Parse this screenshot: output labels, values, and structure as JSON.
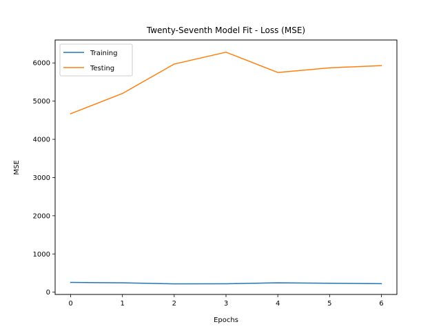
{
  "chart_data": {
    "type": "line",
    "title": "Twenty-Seventh Model Fit - Loss (MSE)",
    "xlabel": "Epochs",
    "ylabel": "MSE",
    "x": [
      0,
      1,
      2,
      3,
      4,
      5,
      6
    ],
    "xlim": [
      -0.3,
      6.3
    ],
    "ylim": [
      -60,
      6600
    ],
    "xticks": [
      0,
      1,
      2,
      3,
      4,
      5,
      6
    ],
    "yticks": [
      0,
      1000,
      2000,
      3000,
      4000,
      5000,
      6000
    ],
    "grid": false,
    "legend_position": "upper-left",
    "series": [
      {
        "name": "Training",
        "color": "#1f77b4",
        "values": [
          255,
          245,
          218,
          220,
          245,
          232,
          222
        ]
      },
      {
        "name": "Testing",
        "color": "#ff7f0e",
        "values": [
          4670,
          5200,
          5970,
          6280,
          5750,
          5870,
          5930
        ]
      }
    ]
  }
}
